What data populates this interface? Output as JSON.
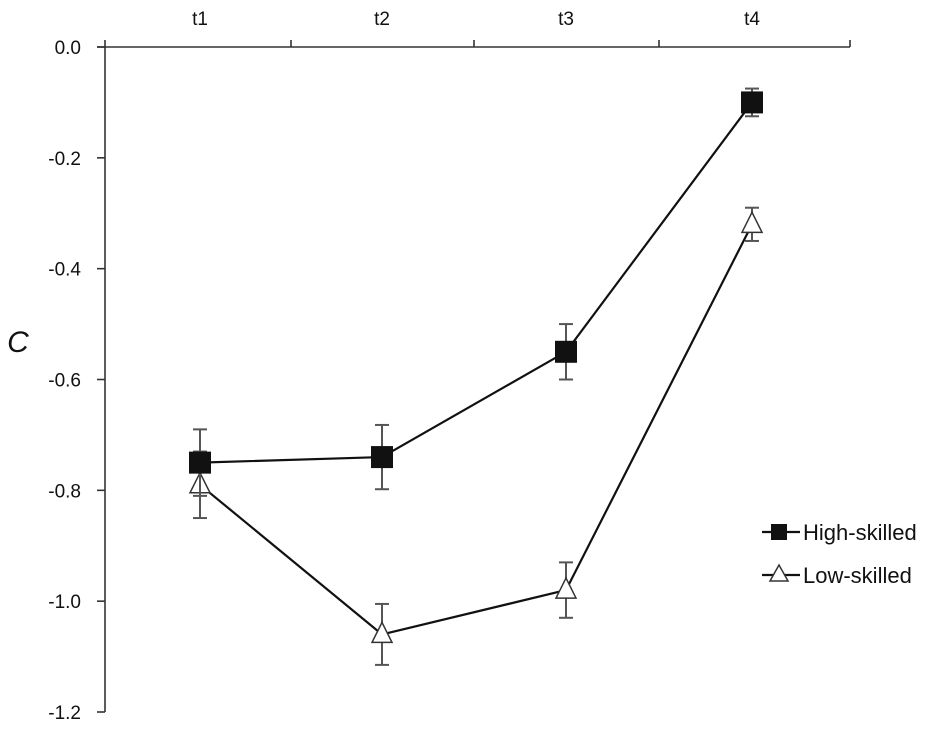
{
  "chart_data": {
    "type": "line",
    "title": "",
    "xlabel": "",
    "ylabel": "C",
    "categories": [
      "t1",
      "t2",
      "t3",
      "t4"
    ],
    "ylim": [
      -1.2,
      0.0
    ],
    "yticks": [
      0.0,
      -0.2,
      -0.4,
      -0.6,
      -0.8,
      -1.0,
      -1.2
    ],
    "ytick_labels": [
      "0.0",
      "-0.2",
      "-0.4",
      "-0.6",
      "-0.8",
      "-1.0",
      "-1.2"
    ],
    "x_axis_position": "top",
    "grid": false,
    "legend_position": "right",
    "series": [
      {
        "name": "High-skilled",
        "marker": "filled-square",
        "color": "#111111",
        "values": [
          -0.75,
          -0.74,
          -0.55,
          -0.1
        ],
        "errors": [
          0.06,
          0.058,
          0.05,
          0.025
        ]
      },
      {
        "name": "Low-skilled",
        "marker": "open-triangle",
        "color": "#111111",
        "values": [
          -0.79,
          -1.06,
          -0.98,
          -0.32
        ],
        "errors": [
          0.06,
          0.055,
          0.05,
          0.03
        ]
      }
    ]
  }
}
